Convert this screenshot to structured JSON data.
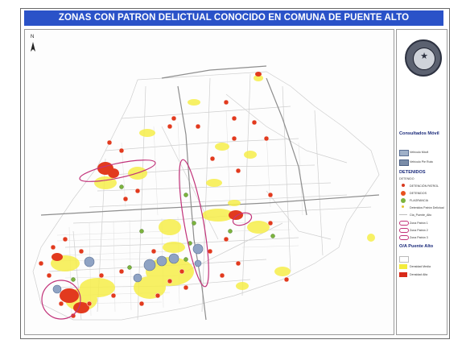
{
  "title": "ZONAS CON PATRON DELICTUAL CONOCIDO EN COMUNA DE PUENTE ALTO",
  "north_label": "N",
  "legend": {
    "section_consultados": "Consultados Móvil",
    "consultados_items": [
      {
        "label": "Vehículo Móvil",
        "color": "#9fb0c8"
      },
      {
        "label": "Vehículo Pie Ruta",
        "color": "#7a8ca8"
      }
    ],
    "section_detenidos": "DETENIDOS",
    "detenidos_sub": "DETENIDO",
    "detenidos_items": [
      {
        "label": "DETENCIÓN PATROL",
        "color": "#d83a20"
      },
      {
        "label": "DETENIDOS",
        "color": "#e8501e"
      },
      {
        "label": "FLAGRANCIA",
        "color": "#7cb33e"
      },
      {
        "label": "Detenidos Patrón Delictual",
        "color": "#e6c030"
      },
      {
        "label": "Cta_Puente_Alto",
        "color": "#bdbdbd"
      }
    ],
    "zonas_items": [
      {
        "label": "Zona Patrón 1",
        "color": "#c23a6a"
      },
      {
        "label": "Zona Patrón 2",
        "color": "#c23a6a"
      },
      {
        "label": "Zona Patrón 3",
        "color": "#c23a6a"
      }
    ],
    "section_oa": "O/A Puente Alto",
    "oa_items": [
      {
        "label": "",
        "color": "#ffffff"
      },
      {
        "label": "Densidad Media",
        "color": "#f3ec3c"
      },
      {
        "label": "Densidad Alta",
        "color": "#d82a1a"
      }
    ]
  },
  "map": {
    "colors": {
      "street": "#c8c8c8",
      "major_road": "#8e8e8e",
      "heat_low": "#f6ee4a",
      "heat_high": "#e23a1e",
      "cluster_blue": "#8fa3c4",
      "ellipse": "#b43c8c"
    }
  }
}
